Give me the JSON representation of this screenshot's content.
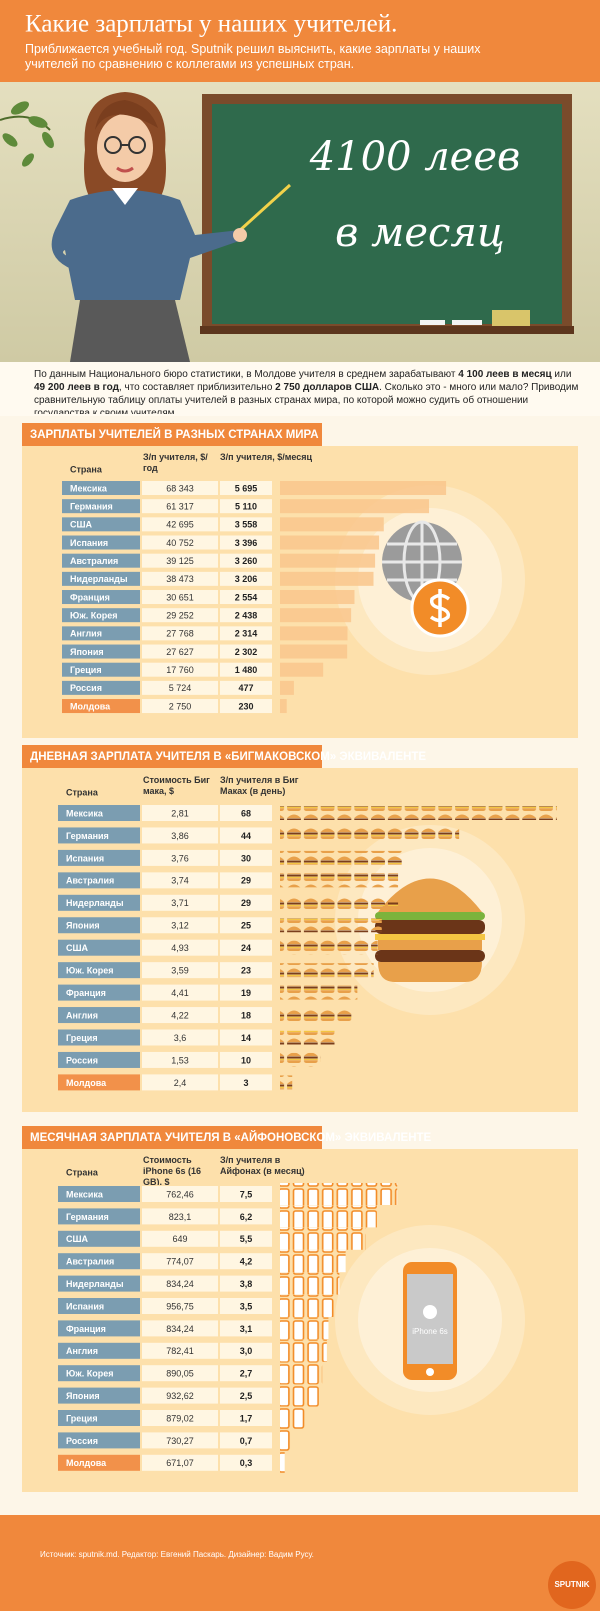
{
  "header": {
    "title": "Какие зарплаты у наших учителей.",
    "subtitle": "Приближается учебный год. Sputnik решил выяснить, какие зарплаты у наших учителей по сравнению с коллегами из успешных стран."
  },
  "board": {
    "line1": "4100 леев",
    "line2": "в месяц"
  },
  "intro": [
    "По данным Национального бюро статистики, в Молдове учителя в среднем зарабатывают ",
    "4 100 леев в месяц",
    " или ",
    "49 200 леев в год",
    ", что составляет приблизительно ",
    "2 750 долларов США",
    ". Сколько это - много или мало? Приводим сравнительную таблицу оплаты учителей в разных странах мира, по которой можно судить об отношении государства к своим учителям."
  ],
  "chart_data": [
    {
      "type": "bar",
      "title": "ЗАРПЛАТЫ УЧИТЕЛЕЙ В РАЗНЫХ СТРАНАХ МИРА",
      "category_label": "Страна",
      "categories": [
        "Мексика",
        "Германия",
        "США",
        "Испания",
        "Австралия",
        "Нидерланды",
        "Франция",
        "Юж. Корея",
        "Англия",
        "Япония",
        "Греция",
        "Россия",
        "Молдова"
      ],
      "category_colors": [
        "#7b9db1",
        "#7b9db1",
        "#7b9db1",
        "#7b9db1",
        "#7b9db1",
        "#7b9db1",
        "#7b9db1",
        "#7b9db1",
        "#7b9db1",
        "#7b9db1",
        "#7b9db1",
        "#7b9db1",
        "#f2914a"
      ],
      "series": [
        {
          "name": "З/п учителя, $/год",
          "values": [
            68343,
            61317,
            42695,
            40752,
            39125,
            38473,
            30651,
            29252,
            27768,
            27627,
            17760,
            5724,
            2750
          ],
          "value_labels": [
            "68 343",
            "61 317",
            "42 695",
            "40 752",
            "39 125",
            "38 473",
            "30 651",
            "29 252",
            "27 768",
            "27 627",
            "17 760",
            "5 724",
            "2 750"
          ]
        },
        {
          "name": "З/п учителя, $/месяц",
          "color": "#f9c68c",
          "values": [
            5695,
            5110,
            3558,
            3396,
            3260,
            3206,
            2554,
            2438,
            2314,
            2302,
            1480,
            477,
            230
          ],
          "value_labels": [
            "5 695",
            "5 110",
            "3 558",
            "3 396",
            "3 260",
            "3 206",
            "2 554",
            "2 438",
            "2 314",
            "2 302",
            "1 480",
            "477",
            "230"
          ]
        }
      ],
      "xlim": [
        0,
        6000
      ]
    },
    {
      "type": "pictograph",
      "icon": "burger",
      "title": "ДНЕВНАЯ ЗАРПЛАТА УЧИТЕЛЯ В «БИГМАКОВСКОМ» ЭКВИВАЛЕНТЕ",
      "category_label": "Страна",
      "categories": [
        "Мексика",
        "Германия",
        "Испания",
        "Австралия",
        "Нидерланды",
        "Япония",
        "США",
        "Юж. Корея",
        "Франция",
        "Англия",
        "Греция",
        "Россия",
        "Молдова"
      ],
      "category_colors": [
        "#7b9db1",
        "#7b9db1",
        "#7b9db1",
        "#7b9db1",
        "#7b9db1",
        "#7b9db1",
        "#7b9db1",
        "#7b9db1",
        "#7b9db1",
        "#7b9db1",
        "#7b9db1",
        "#7b9db1",
        "#f2914a"
      ],
      "series": [
        {
          "name": "Стоимость Биг мака, $",
          "values": [
            2.81,
            3.86,
            3.76,
            3.74,
            3.71,
            3.12,
            4.93,
            3.59,
            4.41,
            4.22,
            3.6,
            1.53,
            2.4
          ],
          "value_labels": [
            "2,81",
            "3,86",
            "3,76",
            "3,74",
            "3,71",
            "3,12",
            "4,93",
            "3,59",
            "4,41",
            "4,22",
            "3,6",
            "1,53",
            "2,4"
          ]
        },
        {
          "name": "З/п учителя в Биг Маках (в день)",
          "color": "#e8a04a",
          "values": [
            68,
            44,
            30,
            29,
            29,
            25,
            24,
            23,
            19,
            18,
            14,
            10,
            3
          ]
        }
      ],
      "xlim": [
        0,
        70
      ]
    },
    {
      "type": "pictograph",
      "icon": "phone",
      "icon_label": "iPhone 6s",
      "title": "МЕСЯЧНАЯ ЗАРПЛАТА УЧИТЕЛЯ В «АЙФОНОВСКОМ» ЭКВИВАЛЕНТЕ",
      "category_label": "Страна",
      "categories": [
        "Мексика",
        "Германия",
        "США",
        "Австралия",
        "Нидерланды",
        "Испания",
        "Франция",
        "Англия",
        "Юж. Корея",
        "Япония",
        "Греция",
        "Россия",
        "Молдова"
      ],
      "category_colors": [
        "#7b9db1",
        "#7b9db1",
        "#7b9db1",
        "#7b9db1",
        "#7b9db1",
        "#7b9db1",
        "#7b9db1",
        "#7b9db1",
        "#7b9db1",
        "#7b9db1",
        "#7b9db1",
        "#7b9db1",
        "#f2914a"
      ],
      "series": [
        {
          "name": "Стоимость iPhone 6s (16 GB), $",
          "values": [
            762.46,
            823.1,
            649,
            774.07,
            834.24,
            956.75,
            834.24,
            782.41,
            890.05,
            932.62,
            879.02,
            730.27,
            671.07
          ],
          "value_labels": [
            "762,46",
            "823,1",
            "649",
            "774,07",
            "834,24",
            "956,75",
            "834,24",
            "782,41",
            "890,05",
            "932,62",
            "879,02",
            "730,27",
            "671,07"
          ]
        },
        {
          "name": "З/п учителя в Айфонах (в месяц)",
          "color": "#f28c28",
          "values": [
            7.5,
            6.2,
            5.5,
            4.2,
            3.8,
            3.5,
            3.1,
            3.0,
            2.7,
            2.5,
            1.7,
            0.7,
            0.3
          ],
          "value_labels": [
            "7,5",
            "6,2",
            "5,5",
            "4,2",
            "3,8",
            "3,5",
            "3,1",
            "3,0",
            "2,7",
            "2,5",
            "1,7",
            "0,7",
            "0,3"
          ]
        }
      ],
      "xlim": [
        0,
        8
      ]
    }
  ],
  "footer": {
    "source": "Источник: sputnik.md. Редактор: Евгений Паскарь. Дизайнер: Вадим Русу.",
    "logo": "SPUTNIK"
  }
}
